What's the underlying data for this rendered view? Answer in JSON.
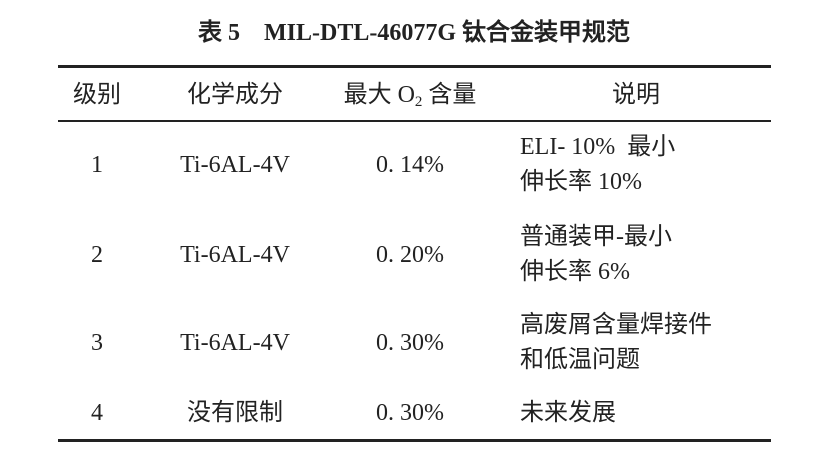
{
  "title": "表 5　MIL-DTL-46077G 钛合金装甲规范",
  "table": {
    "header": [
      "级别",
      "化学成分",
      {
        "text": "最大 O",
        "sub": "2",
        "after": " 含量"
      },
      "说明"
    ],
    "rows": [
      [
        "1",
        "Ti-6AL-4V",
        "0. 14%",
        [
          "ELI- 10%  最小",
          "伸长率 10%"
        ]
      ],
      [
        "2",
        "Ti-6AL-4V",
        "0. 20%",
        [
          "普通装甲-最小",
          "伸长率 6%"
        ]
      ],
      [
        "3",
        "Ti-6AL-4V",
        "0. 30%",
        [
          "高废屑含量焊接件",
          "和低温问题"
        ]
      ],
      [
        "4",
        "没有限制",
        "0. 30%",
        [
          "未来发展"
        ]
      ]
    ]
  }
}
